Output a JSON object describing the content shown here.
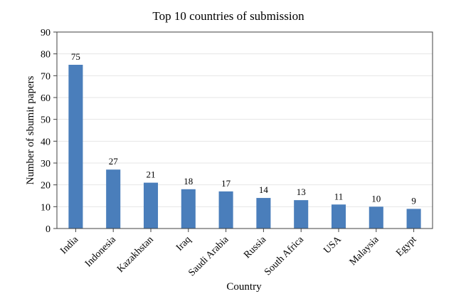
{
  "chart_data": {
    "type": "bar",
    "title": "Top 10 countries of submission",
    "xlabel": "Country",
    "ylabel": "Number of sbumit papers",
    "categories": [
      "India",
      "Indonesia",
      "Kazakhstan",
      "Iraq",
      "Saudi Arabia",
      "Russia",
      "South Africa",
      "USA",
      "Malaysia",
      "Egypt"
    ],
    "values": [
      75,
      27,
      21,
      18,
      17,
      14,
      13,
      11,
      10,
      9
    ],
    "ylim": [
      0,
      90
    ],
    "yticks": [
      0,
      10,
      20,
      30,
      40,
      50,
      60,
      70,
      80,
      90
    ],
    "grid": true,
    "bar_color": "#4a7ebb",
    "grid_color": "#e6e6e6",
    "axis_color": "#404040"
  }
}
